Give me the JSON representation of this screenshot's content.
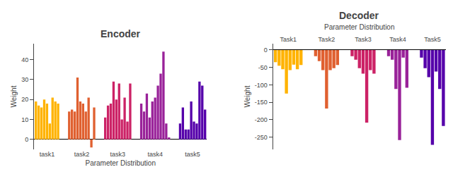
{
  "chart_data": [
    {
      "type": "bar",
      "title": "Encoder",
      "xlabel": "Parameter Distribution",
      "ylabel": "Weight",
      "series": [
        {
          "name": "task1",
          "color": "#FFB300",
          "values": [
            19,
            17,
            16,
            20,
            18,
            8,
            21,
            19,
            18
          ]
        },
        {
          "name": "task2",
          "color": "#E06030",
          "values": [
            14,
            15,
            14,
            31,
            19,
            18,
            14,
            21,
            -4,
            16
          ]
        },
        {
          "name": "task3",
          "color": "#CC2266",
          "values": [
            11,
            17,
            18,
            29,
            20,
            28,
            10,
            21,
            9,
            28
          ]
        },
        {
          "name": "task4",
          "color": "#992299",
          "values": [
            18,
            14,
            23,
            11,
            19,
            21,
            27,
            33,
            44,
            8,
            1
          ]
        },
        {
          "name": "task5",
          "color": "#5500AA",
          "values": [
            8,
            16,
            5,
            5,
            19,
            9,
            8,
            29,
            27,
            15
          ]
        }
      ],
      "ylim": [
        -5,
        48
      ],
      "yticks": [
        0,
        10,
        20,
        30,
        40
      ],
      "grid": false
    },
    {
      "type": "bar",
      "title": "Decoder",
      "subtitle": "Parameter Distribution",
      "ylabel": "Weight",
      "series": [
        {
          "name": "Task1",
          "color": "#FFB300",
          "values": [
            -35,
            -45,
            -55,
            -125,
            -58,
            -42,
            -55,
            -43
          ]
        },
        {
          "name": "Task2",
          "color": "#E06030",
          "values": [
            -18,
            -32,
            -58,
            -168,
            -58,
            -52,
            -43
          ]
        },
        {
          "name": "Task3",
          "color": "#CC2266",
          "values": [
            -18,
            -28,
            -52,
            -68,
            -208,
            -58,
            -68
          ]
        },
        {
          "name": "Task4",
          "color": "#992299",
          "values": [
            -18,
            -28,
            -112,
            -258,
            -22,
            -108
          ]
        },
        {
          "name": "Task5",
          "color": "#5500AA",
          "values": [
            -22,
            -52,
            -78,
            -272,
            -62,
            -112,
            -218
          ]
        }
      ],
      "ylim": [
        -285,
        18
      ],
      "yticks": [
        0,
        -50,
        -100,
        -150,
        -200,
        -250
      ],
      "grid": false
    }
  ]
}
